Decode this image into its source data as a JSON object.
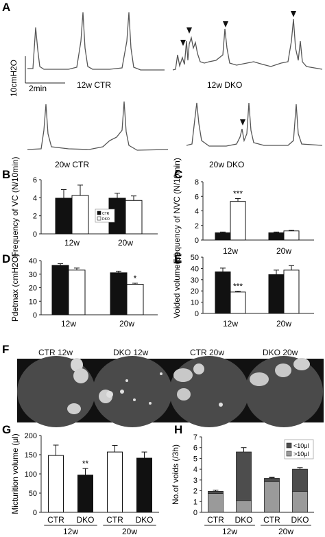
{
  "panels": {
    "A": {
      "letter": "A",
      "scale_y": "10cmH2O",
      "scale_x": "2min",
      "traces": [
        {
          "label": "12w CTR",
          "group": "CTR",
          "age": "12w"
        },
        {
          "label": "12w DKO",
          "group": "DKO",
          "age": "12w"
        },
        {
          "label": "20w CTR",
          "group": "CTR",
          "age": "20w"
        },
        {
          "label": "20w DKO",
          "group": "DKO",
          "age": "20w"
        }
      ]
    },
    "F": {
      "letter": "F",
      "labels": [
        "CTR 12w",
        "DKO 12w",
        "CTR 20w",
        "DKO 20w"
      ]
    }
  },
  "colors": {
    "ctr": "#111111",
    "dko": "#ffffff",
    "gray": "#9a9a9a",
    "dark": "#4d4d4d"
  },
  "chart_data": [
    {
      "panel": "B",
      "type": "bar",
      "ylabel": "Frequency of VC (N/10min)",
      "categories": [
        "12w",
        "20w"
      ],
      "ylim": [
        0,
        6
      ],
      "yticks": [
        0,
        2,
        4,
        6
      ],
      "series": [
        {
          "name": "CTR",
          "values": [
            3.95,
            3.95
          ],
          "errors": [
            0.95,
            0.55
          ]
        },
        {
          "name": "DKO",
          "values": [
            4.25,
            3.7
          ],
          "errors": [
            1.15,
            0.5
          ]
        }
      ],
      "legend": "center"
    },
    {
      "panel": "C",
      "type": "bar",
      "ylabel": "Frequency of NVC (N/10min)",
      "categories": [
        "12w",
        "20w"
      ],
      "ylim": [
        0,
        8
      ],
      "yticks": [
        0,
        2,
        4,
        6,
        8
      ],
      "series": [
        {
          "name": "CTR",
          "values": [
            1.0,
            1.0
          ],
          "errors": [
            0.1,
            0.1
          ]
        },
        {
          "name": "DKO",
          "values": [
            5.3,
            1.25
          ],
          "errors": [
            0.4,
            0.1
          ]
        }
      ],
      "annotations": [
        {
          "category": "12w",
          "series": "DKO",
          "text": "***"
        }
      ]
    },
    {
      "panel": "D",
      "type": "bar",
      "ylabel": "Pdetmax (cmH2O)",
      "categories": [
        "12w",
        "20w"
      ],
      "ylim": [
        0,
        40
      ],
      "yticks": [
        0,
        10,
        20,
        30,
        40
      ],
      "series": [
        {
          "name": "CTR",
          "values": [
            36.5,
            31
          ],
          "errors": [
            1.2,
            1.2
          ]
        },
        {
          "name": "DKO",
          "values": [
            33,
            22.5
          ],
          "errors": [
            1.5,
            0.8
          ]
        }
      ],
      "annotations": [
        {
          "category": "20w",
          "series": "DKO",
          "text": "*"
        }
      ]
    },
    {
      "panel": "E",
      "type": "bar",
      "ylabel": "Voided volume(μl)",
      "categories": [
        "12w",
        "20w"
      ],
      "ylim": [
        0,
        50
      ],
      "yticks": [
        0,
        10,
        20,
        30,
        40,
        50
      ],
      "series": [
        {
          "name": "CTR",
          "values": [
            37,
            34.5
          ],
          "errors": [
            3.3,
            4
          ]
        },
        {
          "name": "DKO",
          "values": [
            19,
            38.5
          ],
          "errors": [
            0.8,
            4
          ]
        }
      ],
      "annotations": [
        {
          "category": "12w",
          "series": "DKO",
          "text": "***"
        }
      ]
    },
    {
      "panel": "G",
      "type": "bar",
      "ylabel": "Micturition volume (μl)",
      "categories": [
        "CTR",
        "DKO",
        "CTR",
        "DKO"
      ],
      "groups": [
        {
          "label": "12w",
          "span": [
            0,
            1
          ]
        },
        {
          "label": "20w",
          "span": [
            2,
            3
          ]
        }
      ],
      "ylim": [
        0,
        200
      ],
      "yticks": [
        0,
        50,
        100,
        150,
        200
      ],
      "values": [
        148,
        97,
        157,
        141
      ],
      "errors": [
        27,
        17,
        17,
        16
      ],
      "fills": [
        "white",
        "black",
        "white",
        "black"
      ],
      "annotations": [
        {
          "index": 1,
          "text": "**"
        }
      ]
    },
    {
      "panel": "H",
      "type": "bar",
      "stacked": true,
      "ylabel": "No.of voids (/3h)",
      "categories": [
        "CTR",
        "DKO",
        "CTR",
        "DKO"
      ],
      "groups": [
        {
          "label": "12w",
          "span": [
            0,
            1
          ]
        },
        {
          "label": "20w",
          "span": [
            2,
            3
          ]
        }
      ],
      "ylim": [
        0,
        7
      ],
      "yticks": [
        0,
        1,
        2,
        3,
        4,
        5,
        6,
        7
      ],
      "series": [
        {
          "name": ">10μl",
          "values": [
            1.75,
            1.1,
            2.85,
            1.95
          ],
          "errors": [
            0.15,
            0.1,
            0.35,
            0.2
          ]
        },
        {
          "name": "<10μl",
          "values": [
            0.2,
            4.5,
            0.3,
            2.05
          ],
          "errors": [
            0.1,
            0.4,
            0.1,
            0.15
          ]
        }
      ],
      "legend": "top-right"
    }
  ]
}
